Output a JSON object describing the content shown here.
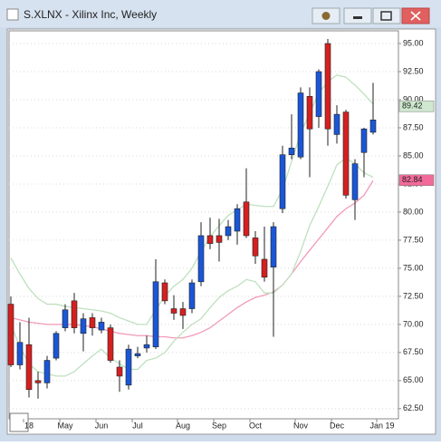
{
  "chart_data": {
    "type": "candlestick",
    "title": "S.XLNX - Xilinx Inc, Weekly",
    "categories": [
      null,
      null,
      "18",
      null,
      null,
      null,
      "May",
      null,
      null,
      null,
      "Jun",
      null,
      null,
      null,
      "Jul",
      null,
      null,
      null,
      null,
      "Aug",
      null,
      null,
      null,
      "Sep",
      null,
      null,
      null,
      "Oct",
      null,
      null,
      null,
      null,
      "Nov",
      null,
      null,
      null,
      "Dec",
      null,
      null,
      null,
      null,
      "Jan 19"
    ],
    "open": [
      71.8,
      66.4,
      68.2,
      65.0,
      64.8,
      67.0,
      69.7,
      72.1,
      69.2,
      70.6,
      69.5,
      69.7,
      66.2,
      64.6,
      67.2,
      67.9,
      68.0,
      73.7,
      71.4,
      71.4,
      71.4,
      73.8,
      77.9,
      77.9,
      77.9,
      78.3,
      80.9,
      77.7,
      75.8,
      75.1,
      80.3,
      85.1,
      84.9,
      90.3,
      88.5,
      95.0,
      86.9,
      88.9,
      81.1,
      85.3,
      87.1,
      null
    ],
    "high": [
      72.5,
      70.2,
      70.6,
      65.8,
      67.2,
      69.4,
      71.8,
      72.8,
      71.0,
      71.0,
      70.6,
      70.0,
      66.8,
      68.2,
      68.0,
      69.0,
      75.8,
      74.0,
      72.6,
      72.0,
      74.0,
      79.1,
      79.5,
      79.4,
      79.3,
      80.7,
      83.9,
      78.3,
      78.7,
      79.1,
      85.9,
      88.7,
      91.1,
      91.1,
      92.7,
      95.4,
      89.5,
      89.1,
      84.7,
      87.5,
      91.5,
      null
    ],
    "low": [
      66.2,
      66.0,
      63.5,
      63.4,
      64.3,
      66.8,
      69.4,
      69.2,
      67.6,
      69.0,
      69.2,
      66.6,
      64.0,
      64.2,
      67.0,
      67.5,
      67.8,
      71.8,
      70.4,
      69.6,
      71.0,
      73.4,
      76.7,
      75.6,
      77.5,
      77.1,
      77.7,
      75.4,
      73.8,
      68.9,
      79.9,
      84.7,
      84.7,
      83.1,
      87.5,
      85.9,
      86.1,
      81.2,
      79.3,
      83.1,
      86.9,
      null
    ],
    "close": [
      66.4,
      68.4,
      64.2,
      64.8,
      66.8,
      69.2,
      71.3,
      69.7,
      70.5,
      69.7,
      70.2,
      66.8,
      65.4,
      67.8,
      67.4,
      68.2,
      73.8,
      72.1,
      71.0,
      70.8,
      73.7,
      77.9,
      77.2,
      77.3,
      78.7,
      80.3,
      77.9,
      76.1,
      74.2,
      78.7,
      85.1,
      85.7,
      90.6,
      87.4,
      92.5,
      87.4,
      88.7,
      81.5,
      84.3,
      87.4,
      88.2,
      null
    ],
    "up_color": "#1a56d6",
    "down_color": "#d42020",
    "series": [
      {
        "color": "#f29ab8",
        "values": [
          70.6,
          70.4,
          70.2,
          70.1,
          70.0,
          70.0,
          70.0,
          70.0,
          69.9,
          69.8,
          69.6,
          69.4,
          69.2,
          69.1,
          69.0,
          69.0,
          68.9,
          68.9,
          68.8,
          68.8,
          69.0,
          69.3,
          69.7,
          70.3,
          70.9,
          71.5,
          72.0,
          72.4,
          72.6,
          72.9,
          73.5,
          74.5,
          75.6,
          76.6,
          77.6,
          78.6,
          79.6,
          80.3,
          80.8,
          81.5,
          82.8,
          null
        ]
      },
      {
        "color": "#bfe0bf",
        "values": [
          75.9,
          74.5,
          73.2,
          72.3,
          71.8,
          71.8,
          71.6,
          71.5,
          71.4,
          71.3,
          71.2,
          71.0,
          70.6,
          70.3,
          70.0,
          70.0,
          71.3,
          72.5,
          73.4,
          74.0,
          75.0,
          76.5,
          77.8,
          78.8,
          79.7,
          80.2,
          80.7,
          80.6,
          80.5,
          80.5,
          82.0,
          84.5,
          87.0,
          88.8,
          90.6,
          91.6,
          92.2,
          92.0,
          91.3,
          90.5,
          89.6,
          null
        ]
      },
      {
        "color": "#bfe0bf",
        "values": [
          70.0,
          68.0,
          66.5,
          65.8,
          65.6,
          65.4,
          65.4,
          65.8,
          66.5,
          67.2,
          67.8,
          67.0,
          66.5,
          66.0,
          66.0,
          66.8,
          67.0,
          67.5,
          68.5,
          69.3,
          70.0,
          70.5,
          71.5,
          72.4,
          73.0,
          73.4,
          74.0,
          73.8,
          72.8,
          72.8,
          73.5,
          74.5,
          76.5,
          78.8,
          80.5,
          82.3,
          84.2,
          84.8,
          84.3,
          83.5,
          83.1,
          null
        ]
      }
    ],
    "price_labels": [
      {
        "value": 89.42,
        "label": "89.42",
        "color": "#cfe8cf"
      },
      {
        "value": 82.84,
        "label": "82.84",
        "color": "#f26a9a"
      }
    ],
    "ylim": [
      61.6,
      96.13
    ],
    "yticks": [
      {
        "value": 62.5,
        "label": "62.50"
      },
      {
        "value": 65,
        "label": "65.00"
      },
      {
        "value": 67.5,
        "label": "67.50"
      },
      {
        "value": 70,
        "label": "70.00"
      },
      {
        "value": 72.5,
        "label": "72.50"
      },
      {
        "value": 75,
        "label": "75.00"
      },
      {
        "value": 77.5,
        "label": "77.50"
      },
      {
        "value": 80,
        "label": "80.00"
      },
      {
        "value": 82.5,
        "label": "82.50"
      },
      {
        "value": 85,
        "label": "85.00"
      },
      {
        "value": 87.5,
        "label": "87.50"
      },
      {
        "value": 90,
        "label": "90.00"
      },
      {
        "value": 92.5,
        "label": "92.50"
      },
      {
        "value": 95,
        "label": "95.00"
      }
    ],
    "grid": true
  }
}
